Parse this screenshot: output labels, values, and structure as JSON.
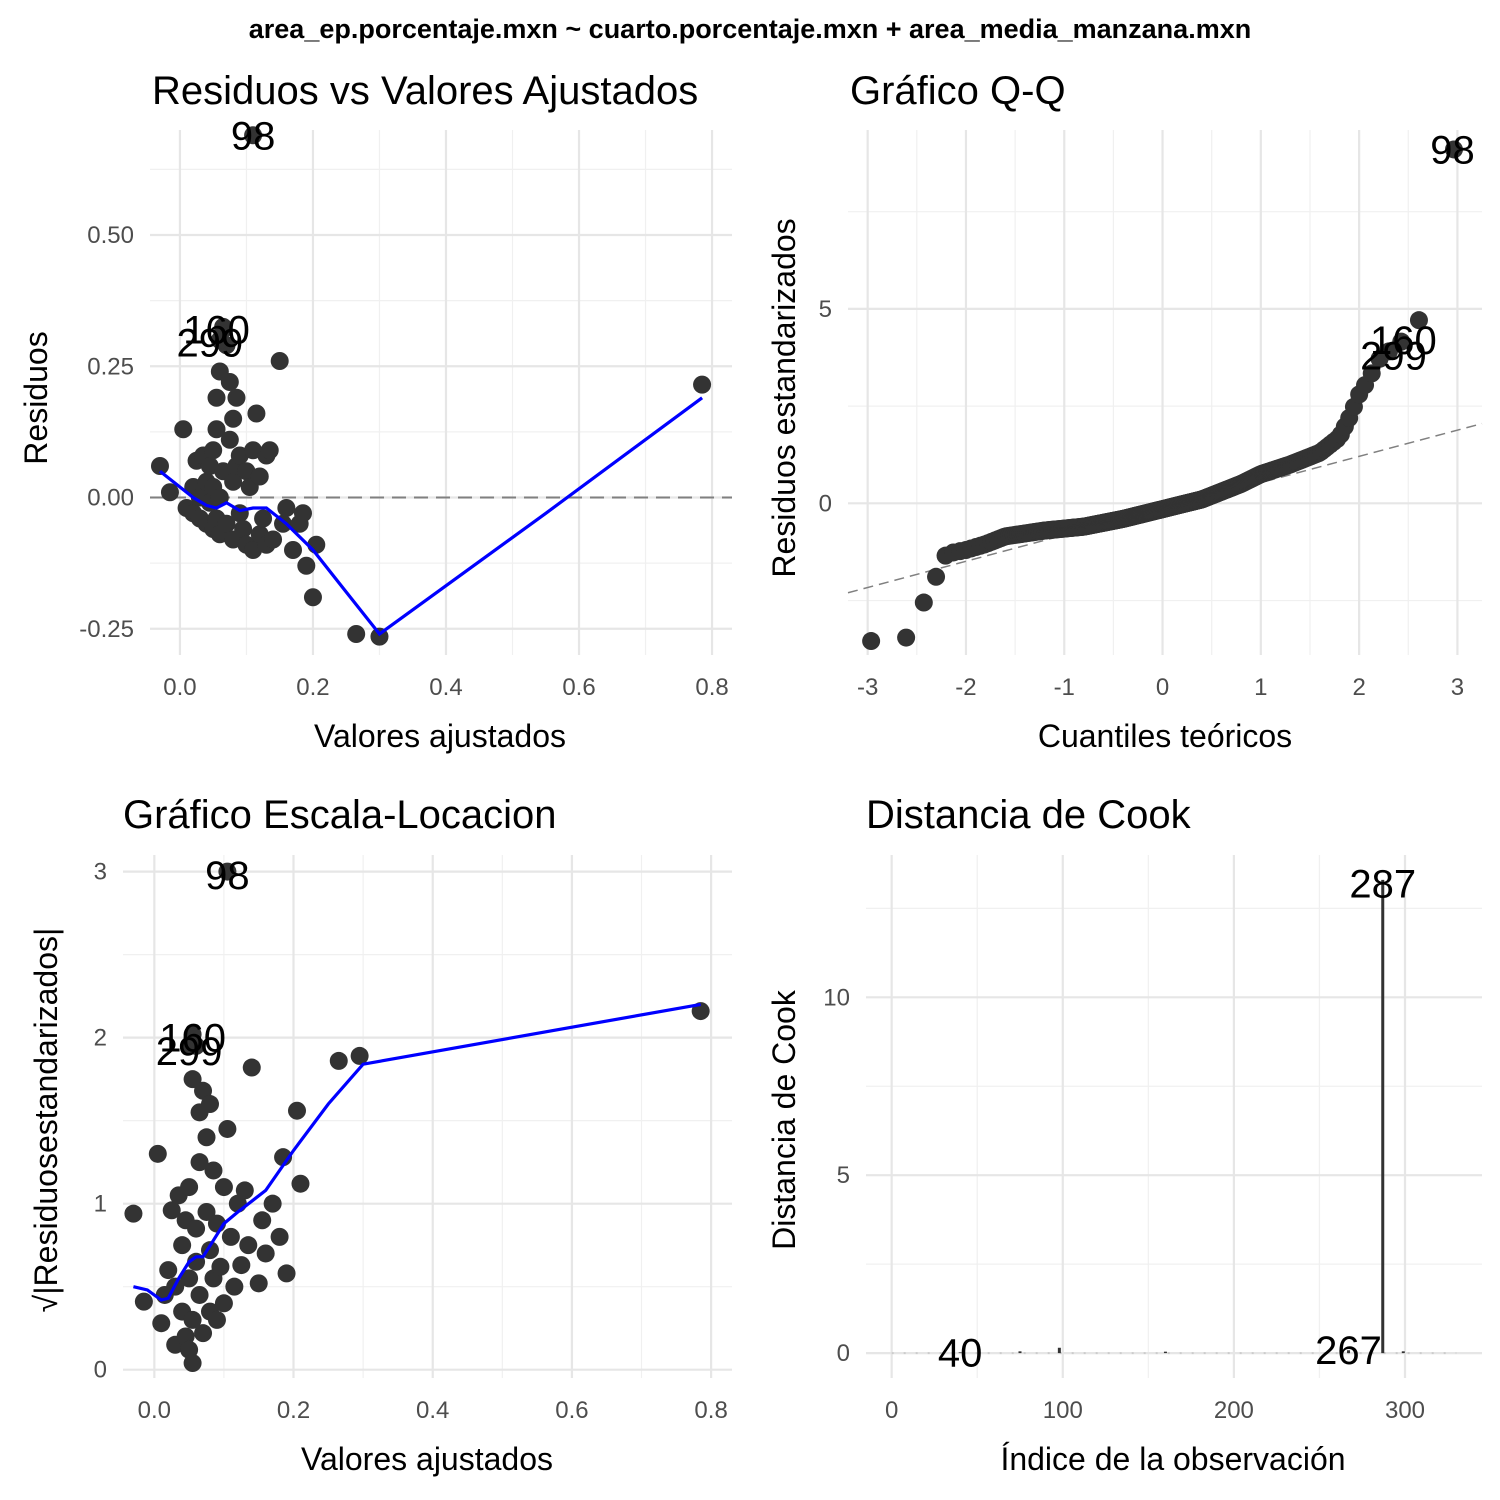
{
  "figure": {
    "suptitle": "area_ep.porcentaje.mxn ~ cuarto.porcentaje.mxn + area_media_manzana.mxn"
  },
  "chart_data": [
    {
      "type": "scatter",
      "title": "Residuos vs Valores Ajustados",
      "xlabel": "Valores ajustados",
      "ylabel": "Residuos",
      "xlim": [
        -0.045,
        0.83
      ],
      "ylim": [
        -0.3,
        0.7
      ],
      "xticks": [
        0.0,
        0.2,
        0.4,
        0.6,
        0.8
      ],
      "xtick_labels": [
        "0.0",
        "0.2",
        "0.4",
        "0.6",
        "0.8"
      ],
      "yticks": [
        -0.25,
        0.0,
        0.25,
        0.5
      ],
      "ytick_labels": [
        "-0.25",
        "0.00",
        "0.25",
        "0.50"
      ],
      "grid": true,
      "reference_line": {
        "y": 0,
        "style": "dashed",
        "color": "#808080"
      },
      "points": [
        [
          -0.03,
          0.06
        ],
        [
          -0.015,
          0.01
        ],
        [
          0.005,
          0.13
        ],
        [
          0.01,
          -0.02
        ],
        [
          0.02,
          -0.03
        ],
        [
          0.02,
          0.02
        ],
        [
          0.025,
          0.07
        ],
        [
          0.03,
          -0.04
        ],
        [
          0.03,
          0.0
        ],
        [
          0.035,
          0.08
        ],
        [
          0.04,
          -0.05
        ],
        [
          0.04,
          0.03
        ],
        [
          0.045,
          -0.01
        ],
        [
          0.045,
          0.06
        ],
        [
          0.05,
          -0.06
        ],
        [
          0.05,
          0.09
        ],
        [
          0.05,
          0.02
        ],
        [
          0.055,
          -0.04
        ],
        [
          0.055,
          0.13
        ],
        [
          0.055,
          0.19
        ],
        [
          0.06,
          0.24
        ],
        [
          0.06,
          0.0
        ],
        [
          0.06,
          -0.07
        ],
        [
          0.065,
          0.32
        ],
        [
          0.065,
          0.05
        ],
        [
          0.07,
          0.29
        ],
        [
          0.07,
          -0.05
        ],
        [
          0.075,
          0.22
        ],
        [
          0.075,
          0.11
        ],
        [
          0.08,
          0.15
        ],
        [
          0.08,
          -0.08
        ],
        [
          0.08,
          0.03
        ],
        [
          0.085,
          0.19
        ],
        [
          0.085,
          0.06
        ],
        [
          0.09,
          -0.03
        ],
        [
          0.09,
          0.08
        ],
        [
          0.095,
          -0.06
        ],
        [
          0.1,
          0.05
        ],
        [
          0.1,
          -0.09
        ],
        [
          0.105,
          0.02
        ],
        [
          0.11,
          0.09
        ],
        [
          0.11,
          -0.1
        ],
        [
          0.115,
          0.16
        ],
        [
          0.12,
          0.04
        ],
        [
          0.12,
          -0.07
        ],
        [
          0.125,
          -0.04
        ],
        [
          0.13,
          0.08
        ],
        [
          0.13,
          -0.09
        ],
        [
          0.135,
          0.09
        ],
        [
          0.14,
          -0.08
        ],
        [
          0.15,
          0.26
        ],
        [
          0.155,
          -0.05
        ],
        [
          0.16,
          -0.02
        ],
        [
          0.17,
          -0.1
        ],
        [
          0.18,
          -0.05
        ],
        [
          0.185,
          -0.03
        ],
        [
          0.19,
          -0.13
        ],
        [
          0.2,
          -0.19
        ],
        [
          0.205,
          -0.09
        ],
        [
          0.265,
          -0.26
        ],
        [
          0.3,
          -0.265
        ],
        [
          0.785,
          0.215
        ],
        [
          0.11,
          0.69
        ],
        [
          0.065,
          0.325
        ],
        [
          0.06,
          0.3
        ]
      ],
      "smooth_line": {
        "color": "#0000ff",
        "points": [
          [
            -0.03,
            0.05
          ],
          [
            0.0,
            0.02
          ],
          [
            0.02,
            0.0
          ],
          [
            0.04,
            -0.015
          ],
          [
            0.055,
            -0.02
          ],
          [
            0.07,
            -0.01
          ],
          [
            0.09,
            -0.025
          ],
          [
            0.11,
            -0.02
          ],
          [
            0.13,
            -0.02
          ],
          [
            0.16,
            -0.05
          ],
          [
            0.2,
            -0.1
          ],
          [
            0.25,
            -0.18
          ],
          [
            0.3,
            -0.26
          ],
          [
            0.55,
            -0.03
          ],
          [
            0.785,
            0.19
          ]
        ]
      },
      "labels": [
        {
          "text": "98",
          "x": 0.11,
          "y": 0.69
        },
        {
          "text": "160",
          "x": 0.055,
          "y": 0.32
        },
        {
          "text": "299",
          "x": 0.045,
          "y": 0.295
        }
      ]
    },
    {
      "type": "scatter",
      "title": "Gráfico Q-Q",
      "xlabel": "Cuantiles teóricos",
      "ylabel": "Residuos estandarizados",
      "xlim": [
        -3.2,
        3.25
      ],
      "ylim": [
        -3.9,
        9.6
      ],
      "xticks": [
        -3,
        -2,
        -1,
        0,
        1,
        2,
        3
      ],
      "xtick_labels": [
        "-3",
        "-2",
        "-1",
        "0",
        "1",
        "2",
        "3"
      ],
      "yticks": [
        0,
        5
      ],
      "ytick_labels": [
        "0",
        "5"
      ],
      "grid": true,
      "reference_line": {
        "points": [
          [
            -3.2,
            -2.3
          ],
          [
            3.25,
            2.05
          ]
        ],
        "style": "dashed",
        "color": "#808080"
      },
      "qq": {
        "n": 330,
        "curve": [
          [
            -3.0,
            -3.55
          ],
          [
            -2.6,
            -3.45
          ],
          [
            -2.4,
            -2.4
          ],
          [
            -2.25,
            -1.6
          ],
          [
            -2.2,
            -1.3
          ],
          [
            -2.0,
            -1.2
          ],
          [
            -1.8,
            -1.05
          ],
          [
            -1.6,
            -0.85
          ],
          [
            -1.2,
            -0.7
          ],
          [
            -0.8,
            -0.6
          ],
          [
            -0.4,
            -0.4
          ],
          [
            0.0,
            -0.15
          ],
          [
            0.4,
            0.1
          ],
          [
            0.8,
            0.5
          ],
          [
            1.0,
            0.75
          ],
          [
            1.3,
            1.0
          ],
          [
            1.6,
            1.3
          ],
          [
            1.8,
            1.7
          ],
          [
            1.9,
            2.2
          ],
          [
            2.0,
            2.8
          ],
          [
            2.1,
            3.2
          ],
          [
            2.2,
            3.7
          ],
          [
            2.35,
            4.0
          ],
          [
            2.45,
            4.2
          ],
          [
            2.6,
            4.6
          ],
          [
            2.95,
            9.1
          ]
        ]
      },
      "labels": [
        {
          "text": "98",
          "x": 2.95,
          "y": 9.1
        },
        {
          "text": "160",
          "x": 2.45,
          "y": 4.2
        },
        {
          "text": "299",
          "x": 2.35,
          "y": 3.8
        }
      ]
    },
    {
      "type": "scatter",
      "title": "Gráfico Escala-Locacion",
      "xlabel": "Valores ajustados",
      "ylabel": "√|Residuosestandarizados|",
      "xlim": [
        -0.045,
        0.83
      ],
      "ylim": [
        -0.05,
        3.1
      ],
      "xticks": [
        0.0,
        0.2,
        0.4,
        0.6,
        0.8
      ],
      "xtick_labels": [
        "0.0",
        "0.2",
        "0.4",
        "0.6",
        "0.8"
      ],
      "yticks": [
        0,
        1,
        2,
        3
      ],
      "ytick_labels": [
        "0",
        "1",
        "2",
        "3"
      ],
      "grid": true,
      "points": [
        [
          -0.03,
          0.94
        ],
        [
          -0.015,
          0.41
        ],
        [
          0.005,
          1.3
        ],
        [
          0.01,
          0.28
        ],
        [
          0.015,
          0.45
        ],
        [
          0.02,
          0.6
        ],
        [
          0.025,
          0.96
        ],
        [
          0.03,
          0.15
        ],
        [
          0.03,
          0.5
        ],
        [
          0.035,
          1.05
        ],
        [
          0.04,
          0.35
        ],
        [
          0.04,
          0.75
        ],
        [
          0.045,
          0.2
        ],
        [
          0.045,
          0.9
        ],
        [
          0.05,
          0.12
        ],
        [
          0.05,
          1.1
        ],
        [
          0.05,
          0.55
        ],
        [
          0.055,
          0.04
        ],
        [
          0.055,
          0.3
        ],
        [
          0.055,
          1.75
        ],
        [
          0.06,
          1.95
        ],
        [
          0.06,
          0.65
        ],
        [
          0.06,
          0.85
        ],
        [
          0.065,
          1.55
        ],
        [
          0.065,
          1.25
        ],
        [
          0.065,
          0.45
        ],
        [
          0.07,
          1.68
        ],
        [
          0.07,
          0.22
        ],
        [
          0.075,
          1.4
        ],
        [
          0.075,
          0.95
        ],
        [
          0.08,
          1.6
        ],
        [
          0.08,
          0.72
        ],
        [
          0.08,
          0.35
        ],
        [
          0.085,
          1.2
        ],
        [
          0.085,
          0.55
        ],
        [
          0.09,
          0.88
        ],
        [
          0.09,
          0.3
        ],
        [
          0.095,
          0.62
        ],
        [
          0.1,
          1.1
        ],
        [
          0.1,
          0.4
        ],
        [
          0.105,
          1.45
        ],
        [
          0.11,
          0.8
        ],
        [
          0.115,
          0.5
        ],
        [
          0.12,
          1.0
        ],
        [
          0.125,
          0.63
        ],
        [
          0.13,
          1.08
        ],
        [
          0.135,
          0.75
        ],
        [
          0.14,
          1.82
        ],
        [
          0.15,
          0.52
        ],
        [
          0.155,
          0.9
        ],
        [
          0.16,
          0.7
        ],
        [
          0.17,
          1.0
        ],
        [
          0.18,
          0.8
        ],
        [
          0.185,
          1.28
        ],
        [
          0.19,
          0.58
        ],
        [
          0.205,
          1.56
        ],
        [
          0.21,
          1.12
        ],
        [
          0.265,
          1.86
        ],
        [
          0.295,
          1.89
        ],
        [
          0.785,
          2.16
        ],
        [
          0.105,
          3.0
        ],
        [
          0.055,
          2.02
        ],
        [
          0.05,
          1.95
        ]
      ],
      "smooth_line": {
        "color": "#0000ff",
        "points": [
          [
            -0.03,
            0.5
          ],
          [
            -0.01,
            0.48
          ],
          [
            0.0,
            0.45
          ],
          [
            0.01,
            0.42
          ],
          [
            0.02,
            0.43
          ],
          [
            0.035,
            0.55
          ],
          [
            0.05,
            0.65
          ],
          [
            0.06,
            0.68
          ],
          [
            0.07,
            0.68
          ],
          [
            0.085,
            0.78
          ],
          [
            0.1,
            0.88
          ],
          [
            0.12,
            0.95
          ],
          [
            0.16,
            1.08
          ],
          [
            0.2,
            1.32
          ],
          [
            0.25,
            1.6
          ],
          [
            0.3,
            1.84
          ],
          [
            0.785,
            2.2
          ]
        ]
      },
      "labels": [
        {
          "text": "98",
          "x": 0.105,
          "y": 2.98
        },
        {
          "text": "160",
          "x": 0.055,
          "y": 2.0
        },
        {
          "text": "299",
          "x": 0.05,
          "y": 1.92
        }
      ]
    },
    {
      "type": "bar",
      "title": "Distancia de Cook",
      "xlabel": "Índice de la observación",
      "ylabel": "Distancia de Cook",
      "xlim": [
        -15,
        345
      ],
      "ylim": [
        -0.7,
        14.0
      ],
      "xticks": [
        0,
        100,
        200,
        300
      ],
      "xtick_labels": [
        "0",
        "100",
        "200",
        "300"
      ],
      "yticks": [
        0,
        5,
        10
      ],
      "ytick_labels": [
        "0",
        "5",
        "10"
      ],
      "grid": true,
      "bars": [
        [
          40,
          0.02
        ],
        [
          75,
          0.05
        ],
        [
          98,
          0.15
        ],
        [
          160,
          0.04
        ],
        [
          267,
          0.08
        ],
        [
          287,
          13.3
        ],
        [
          299,
          0.05
        ]
      ],
      "labels": [
        {
          "text": "287",
          "x": 287,
          "y": 13.2
        },
        {
          "text": "40",
          "x": 40,
          "y": 0.02
        },
        {
          "text": "267",
          "x": 267,
          "y": 0.08
        }
      ]
    }
  ]
}
